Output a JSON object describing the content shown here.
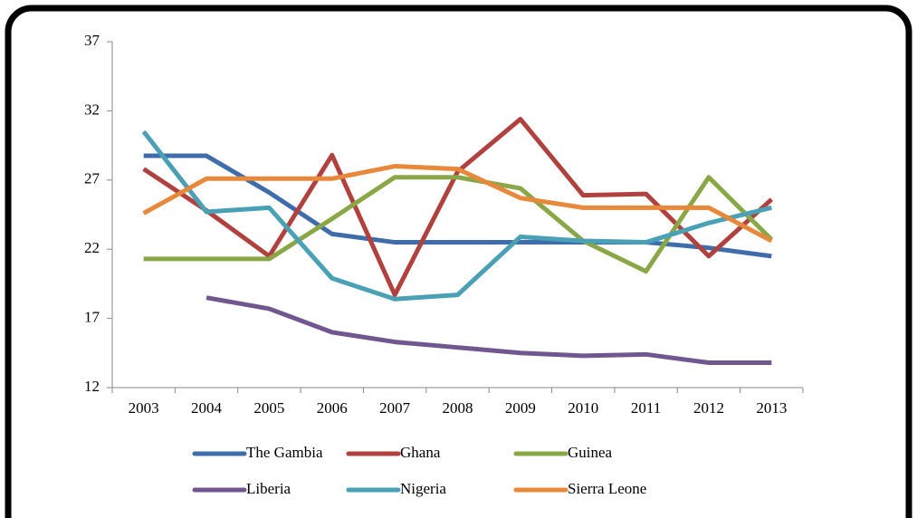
{
  "chart_data": {
    "type": "line",
    "categories": [
      "2003",
      "2004",
      "2005",
      "2006",
      "2007",
      "2008",
      "2009",
      "2010",
      "2011",
      "2012",
      "2013"
    ],
    "series": [
      {
        "name": "The Gambia",
        "color": "#3f6cab",
        "values": [
          28.75,
          28.75,
          26.1,
          23.1,
          22.5,
          22.5,
          22.5,
          22.5,
          22.5,
          22.1,
          21.5
        ]
      },
      {
        "name": "Ghana",
        "color": "#b0413e",
        "values": [
          27.8,
          24.8,
          21.5,
          28.8,
          18.7,
          27.6,
          31.4,
          25.9,
          26.0,
          21.5,
          25.6
        ]
      },
      {
        "name": "Guinea",
        "color": "#8aa748",
        "values": [
          21.3,
          21.3,
          21.3,
          24.2,
          27.2,
          27.2,
          26.4,
          22.6,
          20.4,
          27.2,
          22.7
        ]
      },
      {
        "name": "Liberia",
        "color": "#71578f",
        "values": [
          null,
          18.5,
          17.7,
          16.0,
          15.3,
          14.9,
          14.5,
          14.3,
          14.4,
          13.8,
          13.8
        ]
      },
      {
        "name": "Nigeria",
        "color": "#4aa0b5",
        "values": [
          30.5,
          24.7,
          25.0,
          19.9,
          18.4,
          18.7,
          22.9,
          22.6,
          22.5,
          23.9,
          25.0
        ]
      },
      {
        "name": "Sierra Leone",
        "color": "#e7883a",
        "values": [
          24.6,
          27.1,
          27.1,
          27.1,
          28.0,
          27.8,
          25.7,
          25.0,
          25.0,
          25.0,
          22.6
        ]
      }
    ],
    "ylim": [
      12,
      37
    ],
    "yticks": [
      12,
      17,
      22,
      27,
      32,
      37
    ]
  }
}
